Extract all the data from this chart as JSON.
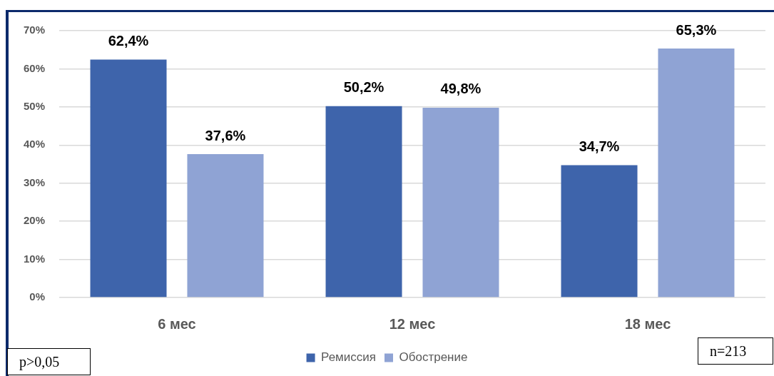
{
  "chart_data": {
    "type": "bar",
    "categories": [
      "6 мес",
      "12 мес",
      "18 мес"
    ],
    "series": [
      {
        "name": "Ремиссия",
        "color": "#3e64ab",
        "values": [
          62.4,
          50.2,
          34.7
        ],
        "value_labels": [
          "62,4%",
          "50,2%",
          "34,7%"
        ]
      },
      {
        "name": "Обострение",
        "color": "#8fa3d4",
        "values": [
          37.6,
          49.8,
          65.3
        ],
        "value_labels": [
          "37,6%",
          "49,8%",
          "65,3%"
        ]
      }
    ],
    "ylim": [
      0,
      70
    ],
    "yticks": [
      {
        "value": 0,
        "label": "0%"
      },
      {
        "value": 10,
        "label": "10%"
      },
      {
        "value": 20,
        "label": "20%"
      },
      {
        "value": 30,
        "label": "30%"
      },
      {
        "value": 40,
        "label": "40%"
      },
      {
        "value": 50,
        "label": "50%"
      },
      {
        "value": 60,
        "label": "60%"
      },
      {
        "value": 70,
        "label": "70%"
      }
    ],
    "grid": "y",
    "legend": "bottom",
    "annotations": [
      "p>0,05",
      "n=213"
    ]
  }
}
